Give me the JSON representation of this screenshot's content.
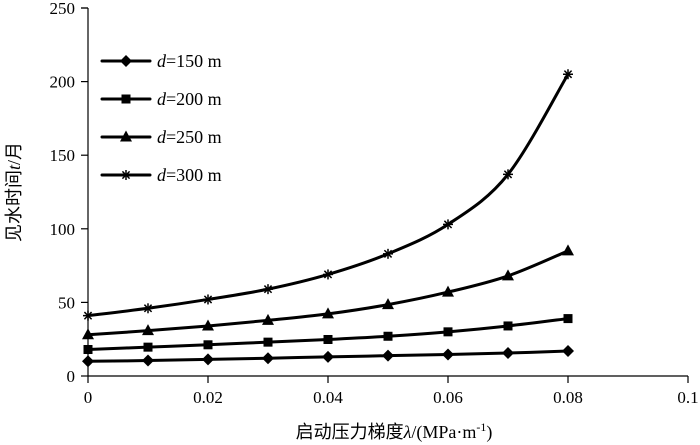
{
  "chart_data": {
    "type": "line",
    "xlabel": "启动压力梯度λ/(MPa·m⁻¹)",
    "ylabel": "见水时间t/月",
    "xlim": [
      0,
      0.1
    ],
    "ylim": [
      0,
      250
    ],
    "x_ticks": [
      "0",
      "0.02",
      "0.04",
      "0.06",
      "0.08",
      "0.1"
    ],
    "y_ticks": [
      "0",
      "50",
      "100",
      "150",
      "200",
      "250"
    ],
    "x": [
      0,
      0.01,
      0.02,
      0.03,
      0.04,
      0.05,
      0.06,
      0.07,
      0.08
    ],
    "grid": false,
    "legend_position": "top-left",
    "series": [
      {
        "name": "d=150 m",
        "marker": "diamond",
        "values": [
          10,
          10.5,
          11.3,
          12.1,
          13,
          13.8,
          14.6,
          15.6,
          17
        ]
      },
      {
        "name": "d=200 m",
        "marker": "square",
        "values": [
          18,
          19.6,
          21.2,
          23,
          24.8,
          27,
          30,
          34,
          39
        ]
      },
      {
        "name": "d=250 m",
        "marker": "triangle",
        "values": [
          28,
          30.8,
          34,
          37.8,
          42.2,
          48.5,
          57,
          68,
          85
        ]
      },
      {
        "name": "d=300 m",
        "marker": "asterisk",
        "values": [
          41,
          46,
          52,
          59,
          69,
          83,
          103,
          137,
          205
        ]
      }
    ]
  }
}
